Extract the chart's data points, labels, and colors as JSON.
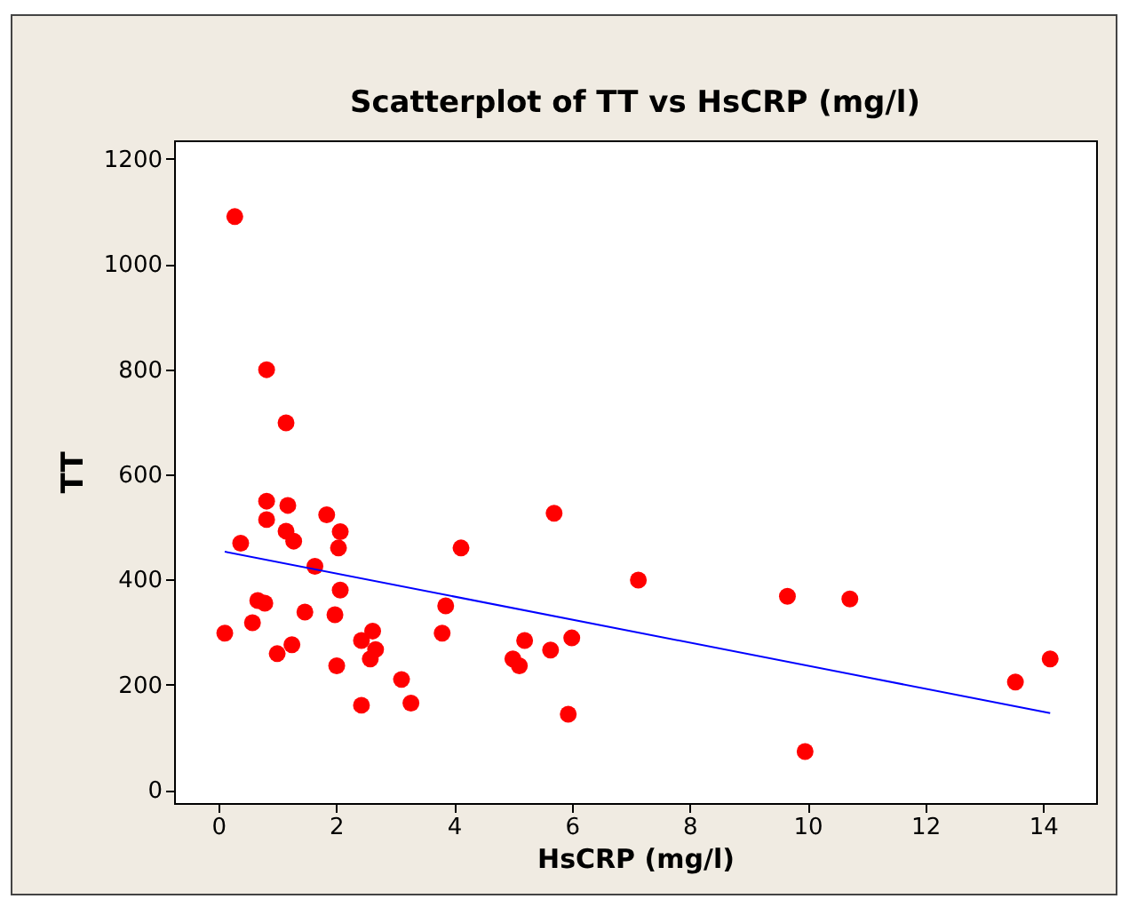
{
  "chart_data": {
    "type": "scatter",
    "title": "Scatterplot of TT vs HsCRP (mg/l)",
    "xlabel": "HsCRP (mg/l)",
    "ylabel": "TT",
    "xlim": [
      -0.75,
      14.9
    ],
    "ylim": [
      -25,
      1235
    ],
    "xticks": [
      0,
      2,
      4,
      6,
      8,
      10,
      12,
      14
    ],
    "yticks": [
      0,
      200,
      400,
      600,
      800,
      1000,
      1200
    ],
    "grid": false,
    "series": [
      {
        "marker": "circle",
        "color": "#ff0000",
        "x": [
          0.28,
          0.11,
          0.38,
          0.82,
          0.82,
          0.82,
          0.67,
          0.79,
          0.58,
          1.0,
          1.15,
          1.18,
          1.15,
          1.28,
          1.25,
          1.47,
          1.64,
          1.84,
          2.07,
          2.04,
          2.07,
          1.98,
          2.01,
          2.43,
          2.62,
          2.67,
          2.58,
          2.43,
          3.11,
          3.27,
          3.8,
          3.86,
          4.12,
          5.0,
          5.11,
          5.2,
          5.7,
          5.64,
          6.0,
          5.94,
          7.13,
          9.66,
          10.72,
          9.96,
          13.53,
          14.12
        ],
        "values": [
          1090,
          298,
          469,
          799,
          549,
          514,
          360,
          355,
          318,
          259,
          698,
          541,
          492,
          473,
          276,
          338,
          425,
          523,
          491,
          460,
          380,
          333,
          236,
          284,
          302,
          267,
          249,
          161,
          210,
          165,
          298,
          350,
          460,
          249,
          236,
          284,
          526,
          266,
          289,
          144,
          399,
          368,
          363,
          73,
          205,
          249
        ]
      },
      {
        "type": "line",
        "color": "#0000ff",
        "line_style": "solid",
        "x": [
          0.11,
          14.12
        ],
        "values": [
          453,
          146
        ]
      }
    ]
  }
}
